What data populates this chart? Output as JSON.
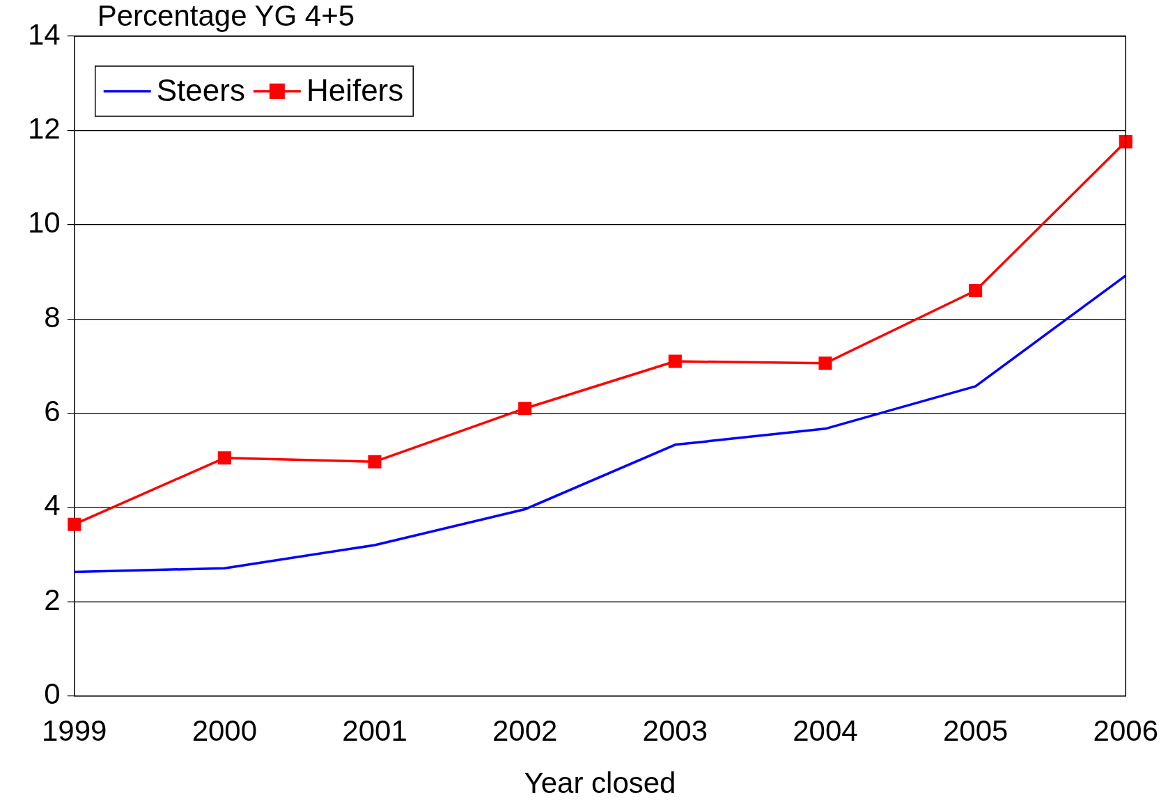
{
  "chart_data": {
    "type": "line",
    "ylabel": "Percentage YG 4+5",
    "xlabel": "Year closed",
    "categories": [
      "1999",
      "2000",
      "2001",
      "2002",
      "2003",
      "2004",
      "2005",
      "2006"
    ],
    "series": [
      {
        "name": "Steers",
        "color": "#0000ff",
        "marker": "none",
        "values": [
          2.63,
          2.71,
          3.2,
          3.96,
          5.33,
          5.67,
          6.57,
          8.92
        ]
      },
      {
        "name": "Heifers",
        "color": "#ff0000",
        "marker": "square",
        "values": [
          3.64,
          5.05,
          4.97,
          6.1,
          7.1,
          7.06,
          8.6,
          11.76
        ]
      }
    ],
    "ylim": [
      0,
      14
    ],
    "yticks": [
      0,
      2,
      4,
      6,
      8,
      10,
      12,
      14
    ],
    "grid": "y",
    "legend": "top left"
  }
}
